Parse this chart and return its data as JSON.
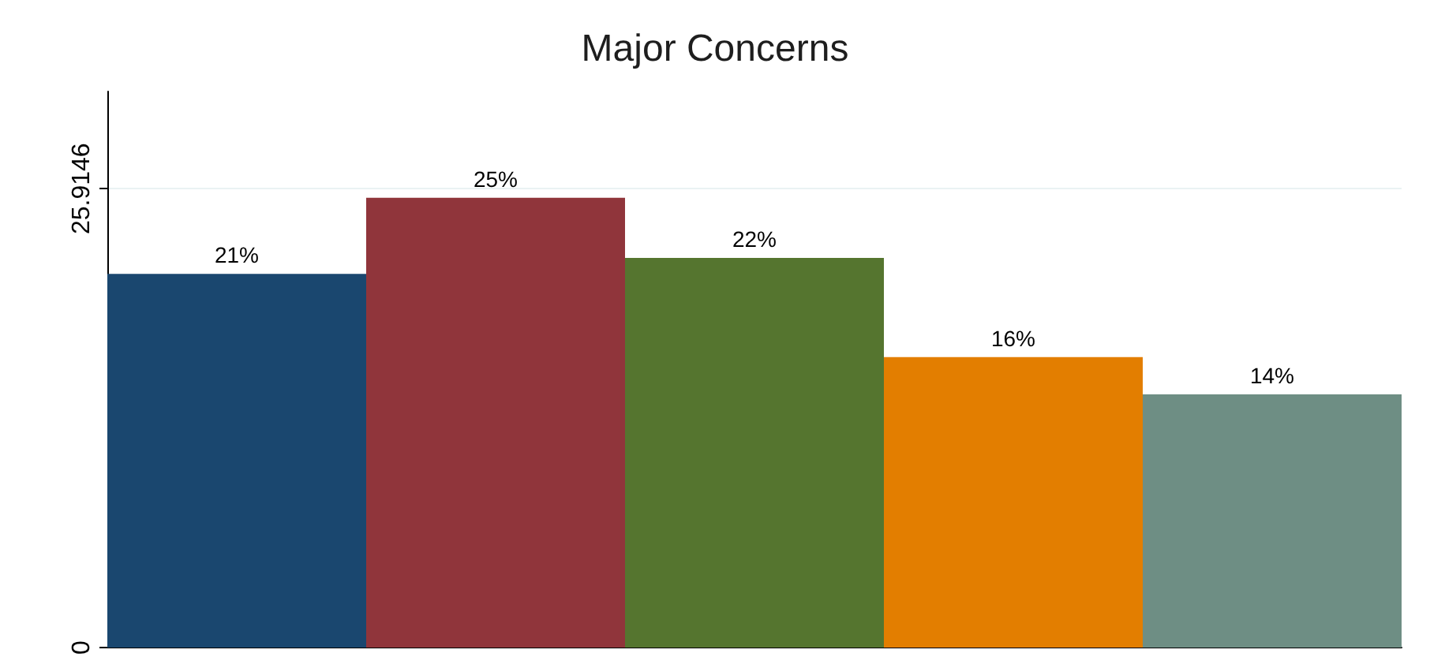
{
  "chart_data": {
    "type": "bar",
    "title": "Major Concerns",
    "categories": [
      null,
      null,
      null,
      null,
      null
    ],
    "values": [
      21.1,
      25.4,
      22.0,
      16.4,
      14.3
    ],
    "colors": [
      "#1a476f",
      "#90353b",
      "#55752f",
      "#e37e00",
      "#6e8e84"
    ],
    "value_labels": [
      "21%",
      "25%",
      "22%",
      "16%",
      "14%"
    ],
    "ylim": [
      0,
      31.4
    ],
    "yticks": [
      0,
      25.9146
    ],
    "grid": "y",
    "tick_labels": "y"
  }
}
